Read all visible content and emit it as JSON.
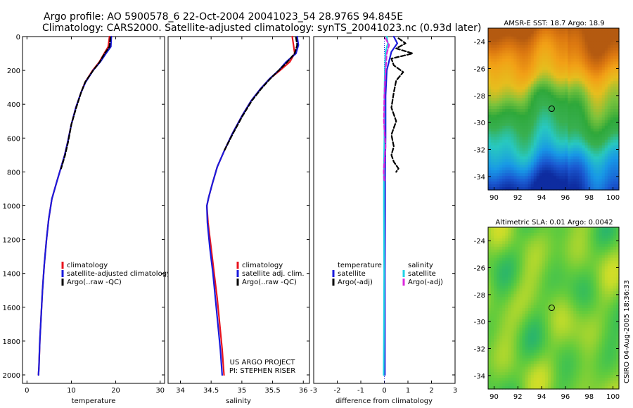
{
  "header": {
    "line1": "Argo profile: AO 5900578_6 22-Oct-2004 20041023_54 28.976S 94.845E",
    "line2": "Climatology: CARS2000. Satellite-adjusted climatology: synTS_20041023.nc (0.93d later)"
  },
  "side_label": "CSIRO 04-Aug-2005 18:36:33",
  "chart_data": [
    {
      "id": "temperature",
      "type": "line",
      "xlabel": "temperature",
      "ylabel": "",
      "xlim": [
        -1,
        31
      ],
      "ylim": [
        0,
        2050
      ],
      "xticks": [
        0,
        10,
        20,
        30
      ],
      "yticks": [
        0,
        200,
        400,
        600,
        800,
        1000,
        1200,
        1400,
        1600,
        1800,
        2000
      ],
      "legend": {
        "placement": "center-right",
        "entries": [
          "climatology",
          "satellite-adjusted climatology",
          "Argo(..raw -QC)"
        ]
      },
      "series": [
        {
          "name": "climatology",
          "color": "#e8141e",
          "x": [
            18.6,
            18.3,
            17.4,
            16.3,
            14.8,
            13.1,
            12.2,
            11.0,
            10.0,
            9.2,
            8.5,
            7.6,
            6.7,
            5.6,
            4.9,
            4.4,
            3.9,
            3.5,
            3.2,
            2.9,
            2.7,
            2.6
          ],
          "y": [
            0,
            60,
            100,
            150,
            200,
            270,
            330,
            420,
            520,
            620,
            700,
            780,
            860,
            960,
            1080,
            1200,
            1350,
            1500,
            1650,
            1800,
            1950,
            2000
          ]
        },
        {
          "name": "satellite-adjusted climatology",
          "color": "#1a1adc",
          "x": [
            19.0,
            18.9,
            17.8,
            16.5,
            14.9,
            13.2,
            12.2,
            11.0,
            10.0,
            9.2,
            8.5,
            7.6,
            6.7,
            5.6,
            4.9,
            4.4,
            3.9,
            3.5,
            3.2,
            2.9,
            2.7,
            2.6
          ],
          "y": [
            0,
            60,
            100,
            150,
            200,
            270,
            330,
            420,
            520,
            620,
            700,
            780,
            860,
            960,
            1080,
            1200,
            1350,
            1500,
            1650,
            1800,
            1950,
            2000
          ]
        },
        {
          "name": "Argo(..raw -QC)",
          "color": "#000000",
          "x": [
            18.8,
            18.6,
            17.5,
            16.4,
            14.9,
            13.1,
            12.2,
            11.1,
            10.0,
            9.3,
            8.6,
            7.7
          ],
          "y": [
            5,
            60,
            100,
            150,
            200,
            270,
            330,
            420,
            520,
            620,
            700,
            780
          ]
        }
      ]
    },
    {
      "id": "salinity",
      "type": "line",
      "xlabel": "salinity",
      "ylabel": "",
      "xlim": [
        33.8,
        36.1
      ],
      "ylim": [
        0,
        2050
      ],
      "xticks": [
        34,
        34.5,
        35,
        35.5,
        36
      ],
      "legend": {
        "placement": "center-right",
        "entries": [
          "climatology",
          "satellite adj. clim.",
          "Argo(..raw -QC)"
        ]
      },
      "annotation": [
        "US ARGO PROJECT",
        "PI: STEPHEN RISER"
      ],
      "series": [
        {
          "name": "climatology",
          "color": "#e8141e",
          "x": [
            35.82,
            35.84,
            35.86,
            35.78,
            35.62,
            35.45,
            35.3,
            35.15,
            35.0,
            34.85,
            34.72,
            34.6,
            34.52,
            34.46,
            34.43,
            34.45,
            34.5,
            34.55,
            34.6,
            34.64,
            34.68,
            34.71
          ],
          "y": [
            0,
            50,
            100,
            150,
            200,
            250,
            310,
            380,
            470,
            570,
            670,
            770,
            870,
            950,
            1000,
            1100,
            1250,
            1400,
            1550,
            1700,
            1850,
            2000
          ]
        },
        {
          "name": "satellite adj. clim.",
          "color": "#1a1adc",
          "x": [
            35.9,
            35.92,
            35.88,
            35.72,
            35.6,
            35.45,
            35.3,
            35.15,
            35.0,
            34.85,
            34.72,
            34.6,
            34.52,
            34.46,
            34.43,
            34.44,
            34.48,
            34.53,
            34.57,
            34.61,
            34.65,
            34.68
          ],
          "y": [
            0,
            50,
            100,
            150,
            200,
            250,
            310,
            380,
            470,
            570,
            670,
            770,
            870,
            950,
            1000,
            1100,
            1250,
            1400,
            1550,
            1700,
            1850,
            2000
          ]
        },
        {
          "name": "Argo(..raw -QC)",
          "color": "#000000",
          "x": [
            35.88,
            35.9,
            35.86,
            35.74,
            35.6,
            35.46,
            35.31,
            35.16,
            35.01,
            34.86,
            34.72
          ],
          "y": [
            5,
            50,
            100,
            150,
            200,
            250,
            310,
            380,
            470,
            570,
            670
          ]
        }
      ]
    },
    {
      "id": "difference",
      "type": "line",
      "xlabel": "difference from climatology",
      "xlim": [
        -3,
        3
      ],
      "ylim": [
        0,
        2050
      ],
      "xticks": [
        -3,
        -2,
        -1,
        0,
        1,
        2,
        3
      ],
      "legend": {
        "placement": "center",
        "entries": [
          "temperature",
          "satellite",
          "Argo(-adj)",
          "salinity",
          "satellite",
          "Argo(-adj)"
        ]
      },
      "series": [
        {
          "name": "temperature satellite",
          "color": "#1a1adc",
          "x": [
            0.4,
            0.55,
            0.3,
            0.1,
            0.05,
            0.05,
            0.03,
            0.03,
            0.02,
            0.02,
            0.02
          ],
          "y": [
            0,
            40,
            90,
            200,
            350,
            600,
            800,
            1000,
            1400,
            1800,
            2000
          ]
        },
        {
          "name": "temperature Argo(-adj)",
          "color": "#000000",
          "x": [
            0.6,
            0.9,
            0.5,
            1.2,
            0.3,
            0.4,
            0.8,
            0.5,
            0.4,
            0.3,
            0.5,
            0.3,
            0.4,
            0.3,
            0.4,
            0.6,
            0.5
          ],
          "y": [
            10,
            40,
            70,
            100,
            130,
            170,
            210,
            260,
            330,
            420,
            500,
            580,
            650,
            700,
            740,
            780,
            800
          ]
        },
        {
          "name": "salinity satellite",
          "color": "#22d2e6",
          "x": [
            0.1,
            0.15,
            0.05,
            0.02,
            0.0,
            0.0,
            -0.02,
            -0.02,
            -0.01,
            -0.02,
            -0.03
          ],
          "y": [
            0,
            40,
            90,
            200,
            350,
            600,
            800,
            1000,
            1400,
            1800,
            2000
          ]
        },
        {
          "name": "salinity Argo(-adj)",
          "color": "#dc28dc",
          "x": [
            0.05,
            0.2,
            0.1,
            0.05,
            0.0,
            -0.02,
            0.05,
            -0.03,
            0.0
          ],
          "y": [
            10,
            50,
            100,
            200,
            350,
            500,
            650,
            800,
            850
          ]
        }
      ]
    },
    {
      "id": "amsre",
      "type": "heatmap",
      "title": "AMSR-E SST: 18.7 Argo: 18.9",
      "xlim": [
        89.5,
        100.5
      ],
      "ylim": [
        -35,
        -23
      ],
      "xticks": [
        90,
        92,
        94,
        96,
        98,
        100
      ],
      "yticks": [
        -24,
        -26,
        -28,
        -30,
        -32,
        -34
      ],
      "marker": {
        "lon": 94.845,
        "lat": -28.976
      },
      "colormap": [
        "#0e2ca0",
        "#1a5ad2",
        "#1898e6",
        "#28c8c0",
        "#38b050",
        "#2ea83a",
        "#7ac23c",
        "#e6be1e",
        "#f2a016",
        "#dc7810",
        "#b45a10"
      ]
    },
    {
      "id": "altimetric",
      "type": "heatmap",
      "title": "Altimetric SLA: 0.01 Argo: 0.0042",
      "xlim": [
        89.5,
        100.5
      ],
      "ylim": [
        -35,
        -23
      ],
      "xticks": [
        90,
        92,
        94,
        96,
        98,
        100
      ],
      "yticks": [
        -24,
        -26,
        -28,
        -30,
        -32,
        -34
      ],
      "marker": {
        "lon": 94.845,
        "lat": -28.976
      },
      "colormap": [
        "#28b46e",
        "#40c250",
        "#64cc3c",
        "#96d232",
        "#c4dc2a",
        "#e2de28"
      ]
    }
  ]
}
